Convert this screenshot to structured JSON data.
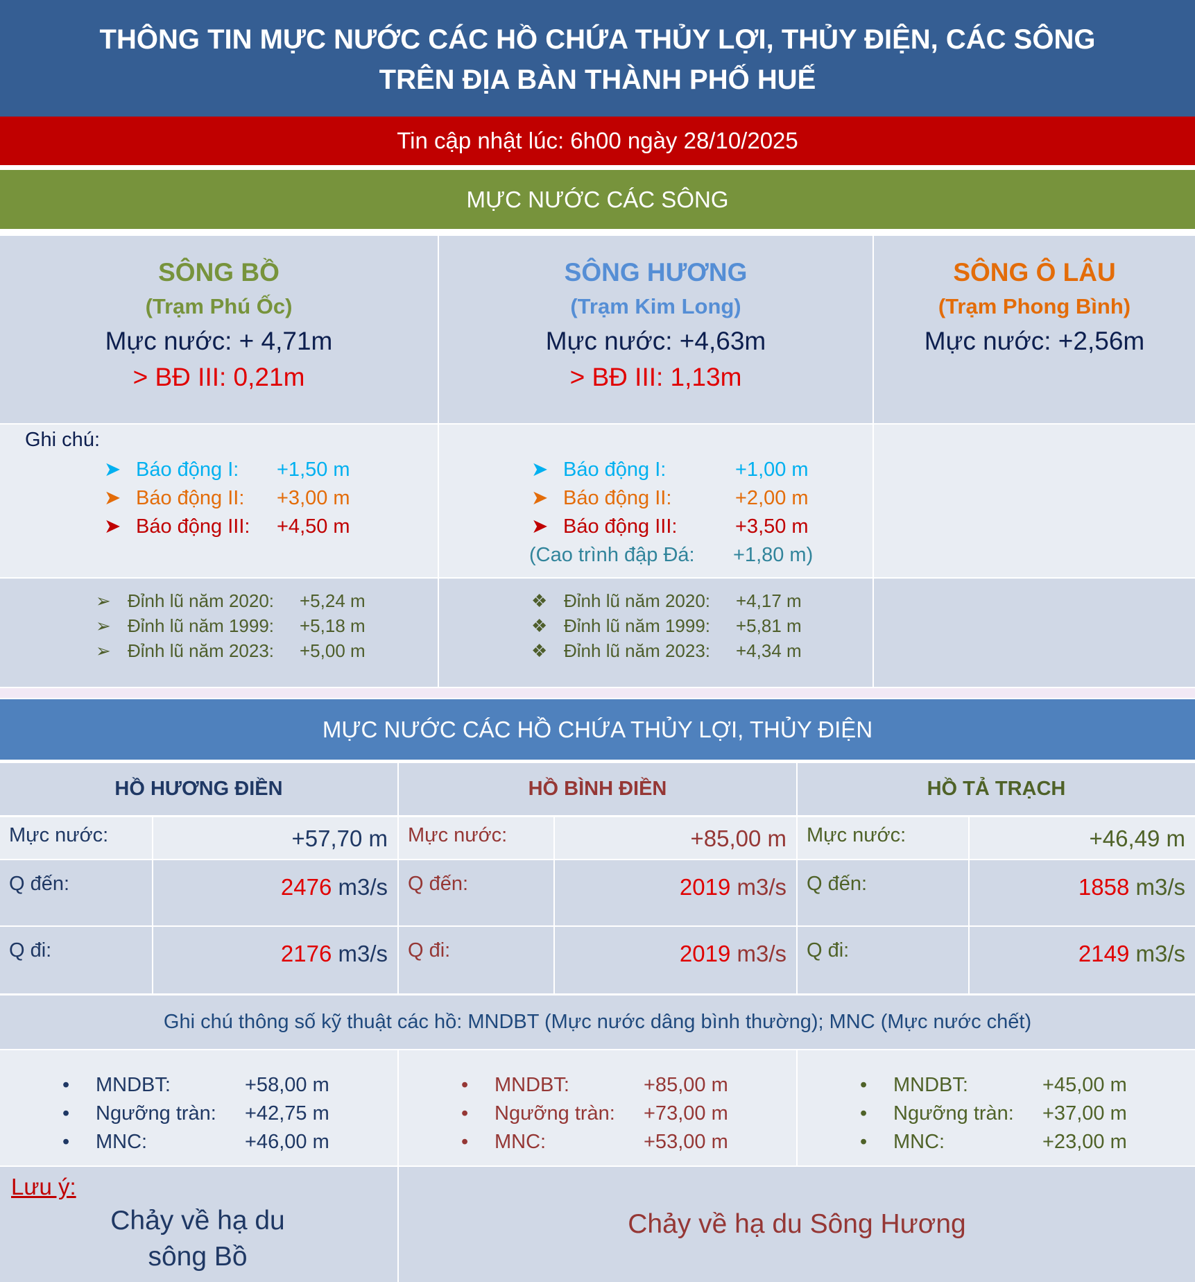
{
  "header": {
    "title_line1": "THÔNG TIN MỰC NƯỚC CÁC HỒ CHỨA THỦY LỢI, THỦY ĐIỆN, CÁC SÔNG",
    "title_line2": "TRÊN ĐỊA BÀN THÀNH PHỐ HUẾ",
    "updated": "Tin cập nhật lúc: 6h00 ngày 28/10/2025"
  },
  "rivers_section": {
    "title": "MỰC NƯỚC CÁC SÔNG",
    "note_label": "Ghi chú:",
    "rivers": [
      {
        "name": "SÔNG BỒ",
        "station": "(Trạm Phú Ốc)",
        "level": "Mực nước: + 4,71m",
        "over": "> BĐ III: 0,21m",
        "color": "#77933c",
        "alarms": [
          {
            "label": "Báo động I:",
            "value": "+1,50 m"
          },
          {
            "label": "Báo động II:",
            "value": "+3,00 m"
          },
          {
            "label": "Báo động III:",
            "value": "+4,50 m"
          }
        ],
        "peaks": [
          {
            "label": "Đỉnh lũ năm 2020:",
            "value": "+5,24 m"
          },
          {
            "label": "Đỉnh lũ năm 1999:",
            "value": "+5,18 m"
          },
          {
            "label": "Đỉnh lũ năm 2023:",
            "value": "+5,00 m"
          }
        ]
      },
      {
        "name": "SÔNG HƯƠNG",
        "station": "(Trạm Kim Long)",
        "level": "Mực nước: +4,63m",
        "over": "> BĐ III: 1,13m",
        "color": "#558ed5",
        "alarms": [
          {
            "label": "Báo động I:",
            "value": "+1,00 m"
          },
          {
            "label": "Báo động II:",
            "value": "+2,00 m"
          },
          {
            "label": "Báo động III:",
            "value": "+3,50 m"
          }
        ],
        "dam": {
          "label": "(Cao trình đập Đá:",
          "value": "+1,80 m)"
        },
        "peaks": [
          {
            "label": "Đỉnh lũ năm 2020:",
            "value": "+4,17 m"
          },
          {
            "label": "Đỉnh lũ năm 1999:",
            "value": "+5,81 m"
          },
          {
            "label": "Đỉnh lũ năm 2023:",
            "value": "+4,34 m"
          }
        ]
      },
      {
        "name": "SÔNG Ô LÂU",
        "station": "(Trạm Phong Bình)",
        "level": "Mực nước: +2,56m",
        "color": "#e36c09"
      }
    ],
    "alarm_colors": [
      "#00b0f0",
      "#e36c09",
      "#c00000"
    ]
  },
  "reservoirs_section": {
    "title": "MỰC NƯỚC CÁC HỒ CHỨA THỦY LỢI, THỦY ĐIỆN",
    "labels": {
      "level": "Mực nước:",
      "inflow": "Q đến:",
      "outflow": "Q đi:",
      "unit": " m3/s"
    },
    "reservoirs": [
      {
        "name": "HỒ HƯƠNG ĐIỀN",
        "color": "#1f3864",
        "level": "+57,70 m",
        "inflow": "2476",
        "outflow": "2176",
        "specs": [
          {
            "label": "MNDBT:",
            "value": "+58,00 m"
          },
          {
            "label": "Ngưỡng tràn:",
            "value": "+42,75 m"
          },
          {
            "label": "MNC:",
            "value": "+46,00 m"
          }
        ]
      },
      {
        "name": "HỒ BÌNH ĐIỀN",
        "color": "#953735",
        "level": "+85,00 m",
        "inflow": "2019",
        "outflow": "2019",
        "specs": [
          {
            "label": "MNDBT:",
            "value": "+85,00 m"
          },
          {
            "label": "Ngưỡng tràn:",
            "value": "+73,00 m"
          },
          {
            "label": "MNC:",
            "value": "+53,00 m"
          }
        ]
      },
      {
        "name": "HỒ TẢ TRẠCH",
        "color": "#4f6228",
        "level": "+46,49 m",
        "inflow": "1858",
        "outflow": "2149",
        "specs": [
          {
            "label": "MNDBT:",
            "value": "+45,00 m"
          },
          {
            "label": "Ngưỡng tràn:",
            "value": "+37,00 m"
          },
          {
            "label": "MNC:",
            "value": "+23,00 m"
          }
        ]
      }
    ],
    "tech_note": "Ghi chú thông số kỹ thuật các hồ: MNDBT (Mực nước dâng bình thường); MNC (Mực nước chết)",
    "note_label": "Lưu ý:",
    "flow_bo": "Chảy về hạ du sông Bồ",
    "flow_huong": "Chảy về hạ du Sông Hương"
  }
}
